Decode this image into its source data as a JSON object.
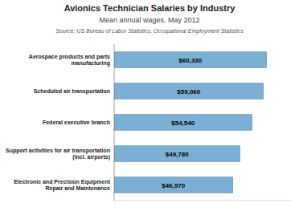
{
  "chart_data": {
    "type": "bar",
    "orientation": "horizontal",
    "title": "Avionics Technician Salaries by Industry",
    "subtitle": "Mean annual wages, May 2012",
    "annotations": [
      "Source: US Bureau of Labor Statistics, Occupational Employment Statistics"
    ],
    "categories": [
      "Electronic and Precision Equipment\nRepair and Maintenance",
      "Support activities for air transportation\n(incl. airports)",
      "Federal executive branch",
      "Scheduled air transportation",
      "Aerospace products and parts\nmanufacturing"
    ],
    "values": [
      46970,
      49780,
      54540,
      59060,
      60330
    ],
    "value_labels": [
      "$46,970",
      "$49,780",
      "$54,540",
      "$59,060",
      "$60,330"
    ],
    "data_labels": true,
    "color": "#7BAFD4",
    "xlim": [
      0,
      70000
    ],
    "tick_labels": "y",
    "grid": false
  }
}
